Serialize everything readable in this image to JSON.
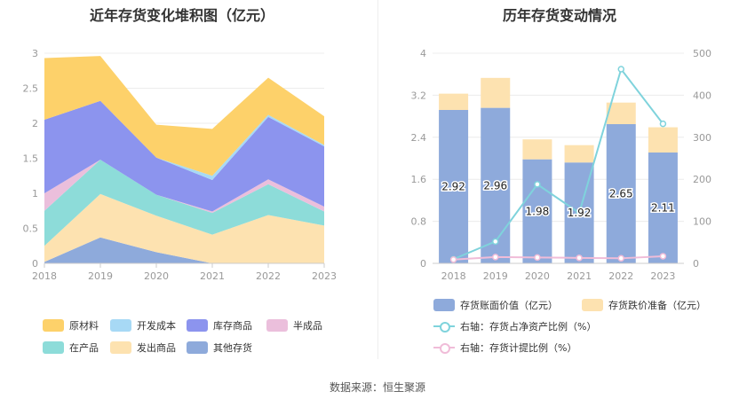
{
  "left_title": "近年存货变化堆积图（亿元）",
  "right_title": "历年存货变动情况",
  "source": "数据来源：恒生聚源",
  "chart_data": [
    {
      "type": "area",
      "stacked": true,
      "title": "近年存货变化堆积图（亿元）",
      "x": [
        "2018",
        "2019",
        "2020",
        "2021",
        "2022",
        "2023"
      ],
      "ylim": [
        0,
        3
      ],
      "yticks": [
        "0",
        "0.5",
        "1",
        "1.5",
        "2",
        "2.5",
        "3"
      ],
      "grid": true,
      "legend_position": "bottom",
      "series": [
        {
          "name": "其他存货",
          "color": "#8eaadb",
          "values": [
            0.02,
            0.37,
            0.16,
            0.0,
            0.0,
            0.0
          ]
        },
        {
          "name": "发出商品",
          "color": "#fde2b0",
          "values": [
            0.23,
            0.62,
            0.52,
            0.41,
            0.69,
            0.54
          ]
        },
        {
          "name": "在产品",
          "color": "#8ddcd9",
          "values": [
            0.5,
            0.49,
            0.3,
            0.31,
            0.44,
            0.2
          ]
        },
        {
          "name": "半成品",
          "color": "#ebbfdc",
          "values": [
            0.25,
            0.0,
            0.0,
            0.02,
            0.07,
            0.07
          ]
        },
        {
          "name": "库存商品",
          "color": "#8c94ee",
          "values": [
            1.05,
            0.84,
            0.53,
            0.45,
            0.89,
            0.86
          ]
        },
        {
          "name": "开发成本",
          "color": "#a7d9f5",
          "values": [
            0.0,
            0.0,
            0.0,
            0.06,
            0.03,
            0.02
          ]
        },
        {
          "name": "原材料",
          "color": "#fdd16a",
          "values": [
            0.88,
            0.64,
            0.47,
            0.67,
            0.53,
            0.41
          ]
        }
      ],
      "legend_order": [
        "原材料",
        "开发成本",
        "库存商品",
        "半成品",
        "在产品",
        "发出商品",
        "其他存货"
      ]
    },
    {
      "type": "bar",
      "stacked": true,
      "title": "历年存货变动情况",
      "categories": [
        "2018",
        "2019",
        "2020",
        "2021",
        "2022",
        "2023"
      ],
      "ylim": [
        0,
        4
      ],
      "yticks": [
        "0",
        "0.8",
        "1.6",
        "2.4",
        "3.2",
        "4"
      ],
      "y2lim": [
        0,
        500
      ],
      "y2ticks": [
        "0",
        "100",
        "200",
        "300",
        "400",
        "500"
      ],
      "legend_position": "bottom",
      "series": [
        {
          "name": "存货账面价值（亿元）",
          "color": "#8eaadb",
          "values": [
            2.92,
            2.96,
            1.98,
            1.92,
            2.65,
            2.11
          ],
          "labels": [
            "2.92",
            "2.96",
            "1.98",
            "1.92",
            "2.65",
            "2.11"
          ]
        },
        {
          "name": "存货跌价准备（亿元）",
          "color": "#fde2b0",
          "values": [
            0.31,
            0.57,
            0.38,
            0.33,
            0.41,
            0.48
          ]
        },
        {
          "name": "右轴：存货占净资产比例（%）",
          "type": "line",
          "axis": "right",
          "color": "#7fd3dc",
          "values": [
            10,
            52,
            188,
            120,
            462,
            332
          ]
        },
        {
          "name": "右轴：存货计提比例（%）",
          "type": "line",
          "axis": "right",
          "color": "#f0bcd8",
          "values": [
            9,
            15,
            14,
            13,
            12,
            17
          ]
        }
      ]
    }
  ]
}
